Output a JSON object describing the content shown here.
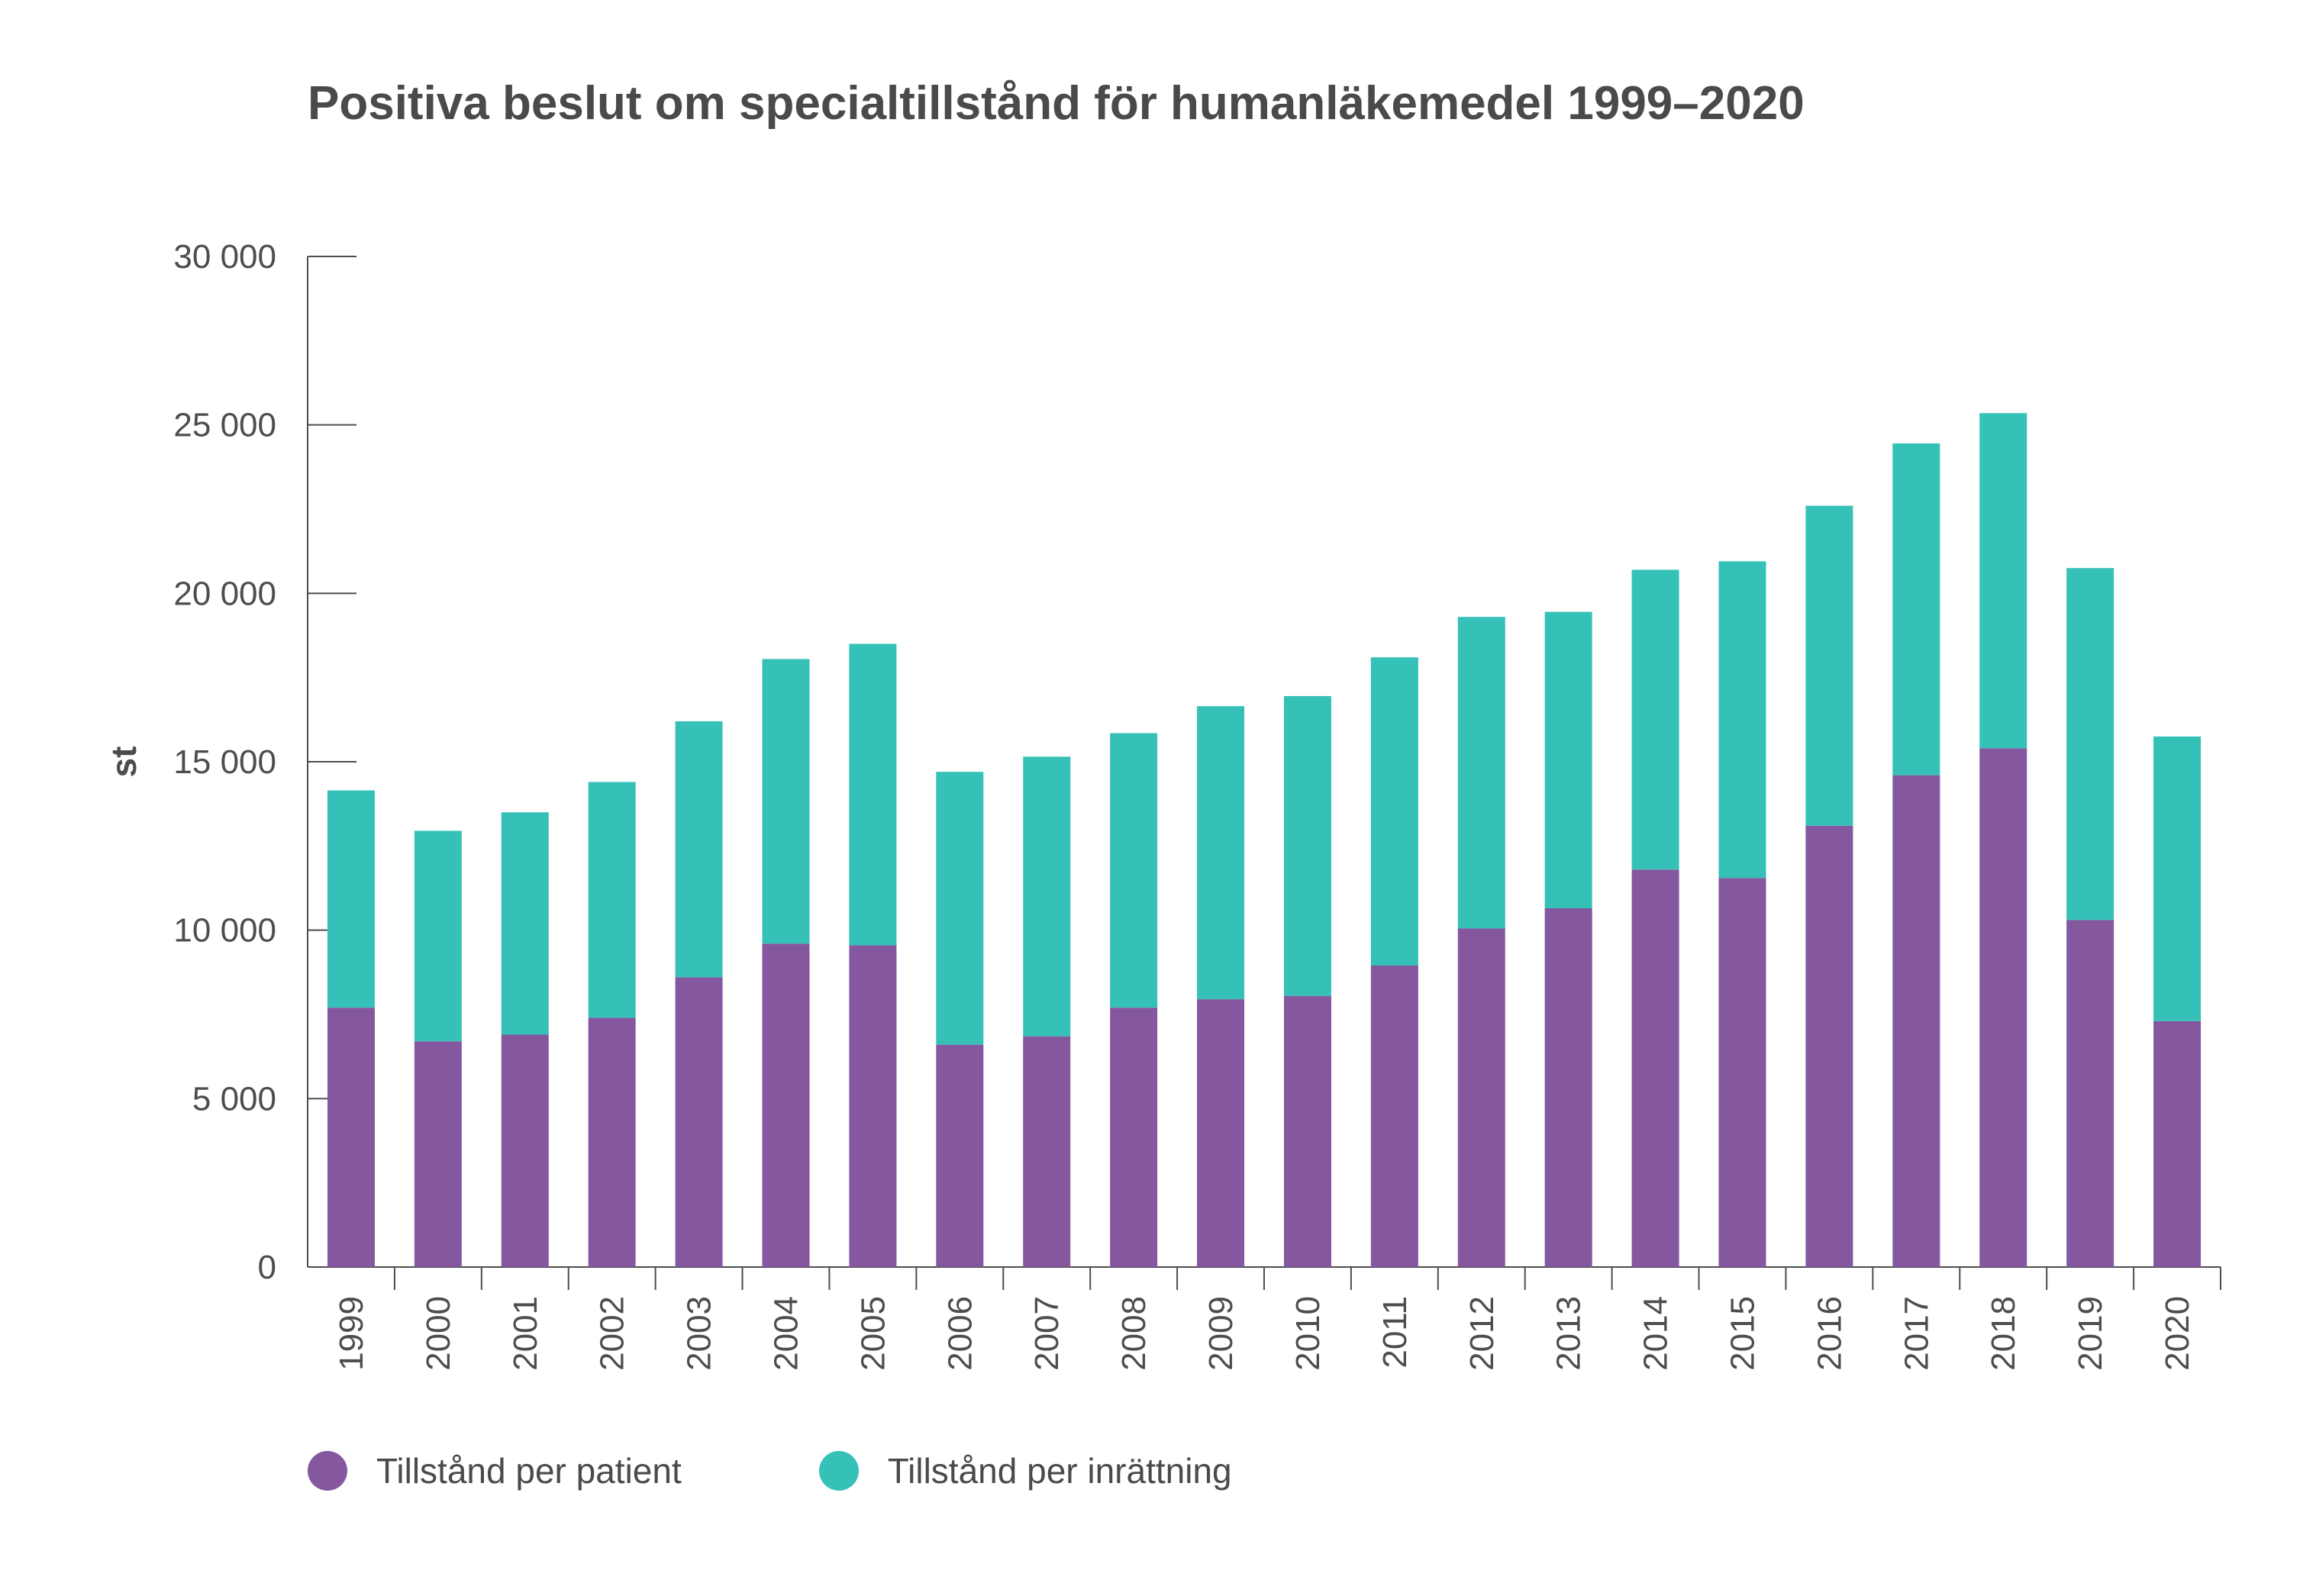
{
  "chart_data": {
    "type": "bar",
    "stacked": true,
    "title": "Positiva beslut om specialtillstånd för humanläkemedel 1999–2020",
    "xlabel": "",
    "ylabel": "st",
    "ylim": [
      0,
      30000
    ],
    "yticks": [
      0,
      5000,
      10000,
      15000,
      20000,
      25000,
      30000
    ],
    "ytick_labels": [
      "0",
      "5 000",
      "10 000",
      "15 000",
      "20 000",
      "25 000",
      "30 000"
    ],
    "categories": [
      "1999",
      "2000",
      "2001",
      "2002",
      "2003",
      "2004",
      "2005",
      "2006",
      "2007",
      "2008",
      "2009",
      "2010",
      "2011",
      "2012",
      "2013",
      "2014",
      "2015",
      "2016",
      "2017",
      "2018",
      "2019",
      "2020"
    ],
    "series": [
      {
        "name": "Tillstånd per patient",
        "color": "#84579f",
        "values": [
          7700,
          6700,
          6900,
          7400,
          8600,
          9600,
          9550,
          6600,
          6850,
          7700,
          7950,
          8050,
          8950,
          10050,
          10650,
          11800,
          11550,
          13100,
          14600,
          15400,
          10300,
          7300
        ]
      },
      {
        "name": "Tillstånd per inrättning",
        "color": "#35c1b8",
        "values": [
          6450,
          6250,
          6600,
          7000,
          7600,
          8450,
          8950,
          8100,
          8300,
          8150,
          8700,
          8900,
          9150,
          9250,
          8800,
          8900,
          9400,
          9500,
          9850,
          9950,
          10450,
          8450
        ]
      }
    ],
    "grid": false,
    "legend_position": "bottom-left"
  }
}
